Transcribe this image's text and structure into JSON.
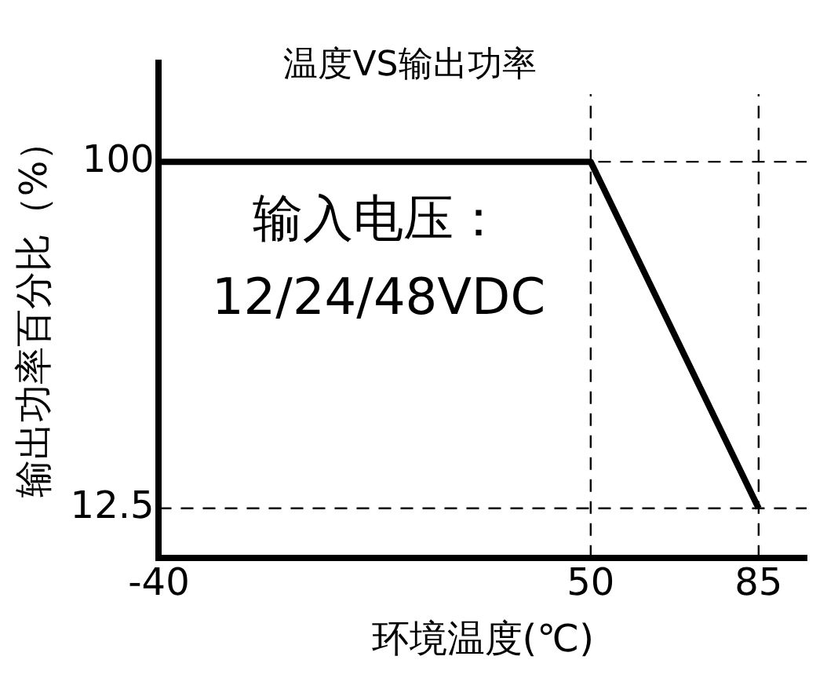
{
  "chart_data": {
    "type": "line",
    "title": "温度VS输出功率",
    "xlabel": "环境温度(℃)",
    "ylabel": "输出功率百分比（%）",
    "x": [
      -40,
      50,
      85
    ],
    "series": [
      {
        "color": "#000000",
        "values": [
          100,
          100,
          12.5
        ]
      }
    ],
    "xlim": [
      -40,
      95
    ],
    "xticks": [
      -40,
      50,
      85
    ],
    "ylim": [
      0,
      125
    ],
    "yticks": [
      12.5,
      100
    ],
    "ref_lines": [
      {
        "axis": "x",
        "value": 50,
        "color": "#000000",
        "line_style": "dashed"
      },
      {
        "axis": "x",
        "value": 85,
        "color": "#000000",
        "line_style": "dashed"
      },
      {
        "axis": "y",
        "value": 12.5,
        "color": "#000000",
        "line_style": "dashed"
      },
      {
        "axis": "y",
        "value": 100,
        "color": "#000000",
        "line_style": "dashed"
      }
    ],
    "annotations": [
      "输入电压：",
      "12/24/48VDC"
    ],
    "grid": false,
    "legend": false,
    "marker": "none",
    "line_style": "solid"
  }
}
